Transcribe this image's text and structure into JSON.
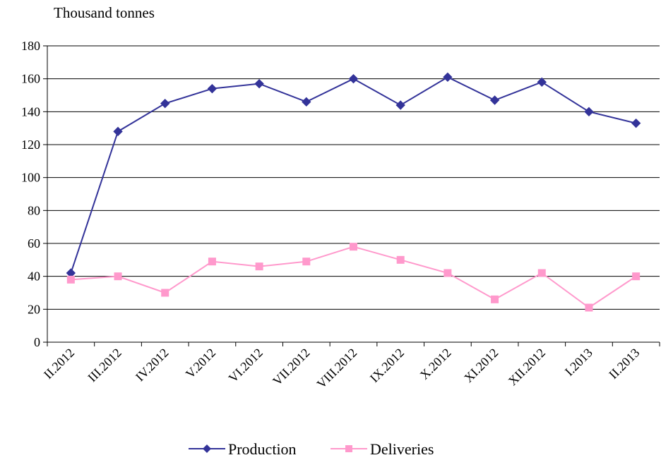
{
  "chart_data": {
    "type": "line",
    "ylabel": "Thousand tonnes",
    "ylim": [
      0,
      180
    ],
    "yticks": [
      0,
      20,
      40,
      60,
      80,
      100,
      120,
      140,
      160,
      180
    ],
    "grid": true,
    "legend_position": "bottom",
    "categories": [
      "II.2012",
      "III.2012",
      "IV.2012",
      "V.2012",
      "VI.2012",
      "VII.2012",
      "VIII.2012",
      "IX.2012",
      "X.2012",
      "XI.2012",
      "XII.2012",
      "I.2013",
      "II.2013"
    ],
    "series": [
      {
        "name": "Production",
        "color": "#333399",
        "marker": "diamond",
        "values": [
          42,
          128,
          145,
          154,
          157,
          146,
          160,
          144,
          161,
          147,
          158,
          140,
          133
        ]
      },
      {
        "name": "Deliveries",
        "color": "#ff99cc",
        "marker": "square",
        "values": [
          38,
          40,
          30,
          49,
          46,
          49,
          58,
          50,
          42,
          26,
          42,
          21,
          40
        ]
      }
    ]
  }
}
